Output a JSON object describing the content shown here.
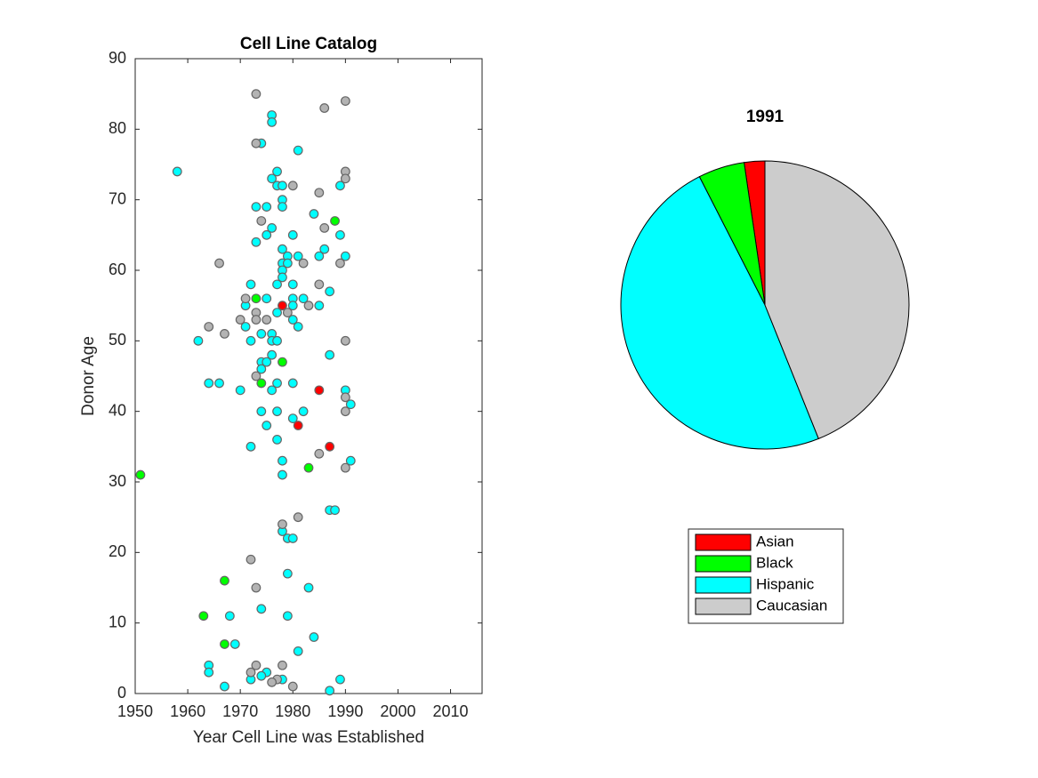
{
  "chart_data": [
    {
      "type": "scatter",
      "title": "Cell Line Catalog",
      "xlabel": "Year Cell Line was Established",
      "ylabel": "Donor Age",
      "xlim": [
        1950,
        2016
      ],
      "xticks": [
        1950,
        1960,
        1970,
        1980,
        1990,
        2000,
        2010
      ],
      "ylim": [
        0,
        90
      ],
      "yticks": [
        0,
        10,
        20,
        30,
        40,
        50,
        60,
        70,
        80,
        90
      ],
      "series": [
        {
          "color": "#ff0000",
          "x": [
            1978,
            1985,
            1981,
            1987
          ],
          "values": [
            55,
            43,
            38,
            35
          ]
        },
        {
          "color": "#00ff00",
          "x": [
            1951,
            1973,
            1988,
            1978,
            1974,
            1983,
            1967,
            1963,
            1967
          ],
          "values": [
            31,
            56,
            67,
            47,
            44,
            32,
            16,
            11,
            7
          ]
        },
        {
          "color": "#00ffff",
          "x": [
            1958,
            1976,
            1976,
            1974,
            1981,
            1977,
            1976,
            1977,
            1978,
            1989,
            1978,
            1973,
            1975,
            1978,
            1984,
            1976,
            1975,
            1980,
            1989,
            1973,
            1978,
            1986,
            1979,
            1981,
            1985,
            1990,
            1978,
            1979,
            1978,
            1978,
            1972,
            1977,
            1980,
            1987,
            1975,
            1980,
            1982,
            1971,
            1980,
            1985,
            1977,
            1980,
            1971,
            1981,
            1974,
            1976,
            1962,
            1972,
            1976,
            1977,
            1987,
            1976,
            1974,
            1975,
            1974,
            1964,
            1966,
            1977,
            1980,
            1970,
            1976,
            1990,
            1991,
            1974,
            1977,
            1982,
            1980,
            1975,
            1977,
            1972,
            1978,
            1991,
            1978,
            1987,
            1988,
            1978,
            1979,
            1980,
            1979,
            1983,
            1974,
            1968,
            1979,
            1969,
            1984,
            1981,
            1964,
            1964,
            1975,
            1974,
            1978,
            1972,
            1989,
            1967,
            1987
          ],
          "values": [
            74,
            82,
            81,
            78,
            77,
            74,
            73,
            72,
            72,
            72,
            70,
            69,
            69,
            69,
            68,
            66,
            65,
            65,
            65,
            64,
            63,
            63,
            62,
            62,
            62,
            62,
            61,
            61,
            60,
            59,
            58,
            58,
            58,
            57,
            56,
            56,
            56,
            55,
            55,
            55,
            54,
            53,
            52,
            52,
            51,
            51,
            50,
            50,
            50,
            50,
            48,
            48,
            47,
            47,
            46,
            44,
            44,
            44,
            44,
            43,
            43,
            43,
            41,
            40,
            40,
            40,
            39,
            38,
            36,
            35,
            33,
            33,
            31,
            26,
            26,
            23,
            22,
            22,
            17,
            15,
            12,
            11,
            11,
            7,
            8,
            6,
            4,
            3,
            3,
            2.5,
            2,
            2,
            2,
            1,
            0.4
          ]
        },
        {
          "color": "#b3b3b3",
          "x": [
            1973,
            1990,
            1986,
            1973,
            1990,
            1990,
            1980,
            1985,
            1974,
            1986,
            1966,
            1982,
            1989,
            1985,
            1971,
            1973,
            1979,
            1983,
            1970,
            1975,
            1973,
            1964,
            1967,
            1990,
            1973,
            1990,
            1990,
            1985,
            1990,
            1981,
            1978,
            1972,
            1973,
            1973,
            1978,
            1972,
            1977,
            1976,
            1980
          ],
          "values": [
            85,
            84,
            83,
            78,
            74,
            73,
            72,
            71,
            67,
            66,
            61,
            61,
            61,
            58,
            56,
            54,
            54,
            55,
            53,
            53,
            53,
            52,
            51,
            50,
            45,
            42,
            40,
            34,
            32,
            25,
            24,
            19,
            15,
            4,
            4,
            3,
            2,
            1.6,
            1
          ]
        }
      ]
    },
    {
      "type": "pie",
      "title": "1991",
      "legend": "bottom",
      "categories": [
        "Asian",
        "Black",
        "Hispanic",
        "Caucasian"
      ],
      "values": [
        4,
        9,
        84,
        76
      ],
      "colors": [
        "#ff0000",
        "#00ff00",
        "#00ffff",
        "#cccccc"
      ]
    }
  ]
}
